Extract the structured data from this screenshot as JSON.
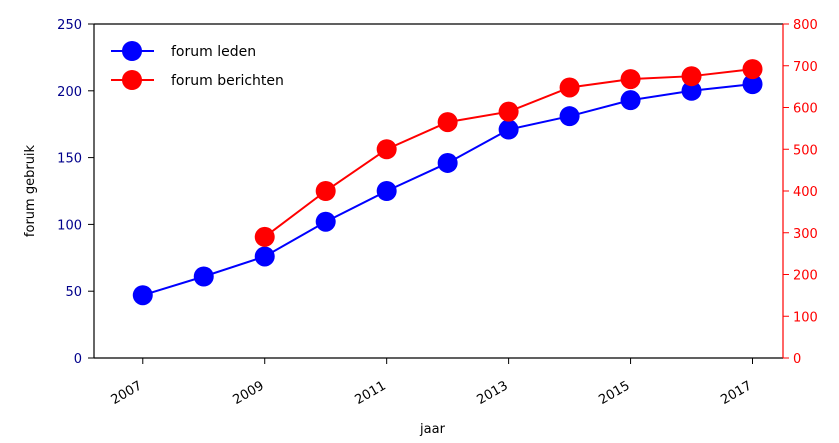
{
  "chart_data": {
    "type": "line",
    "title": "",
    "xlabel": "jaar",
    "ylabel_left": "forum gebruik",
    "ylabel_right": "",
    "x": [
      2007,
      2008,
      2009,
      2010,
      2011,
      2012,
      2013,
      2014,
      2015,
      2016,
      2017
    ],
    "x_tick_labels": [
      "2007",
      "2009",
      "2011",
      "2013",
      "2015",
      "2017"
    ],
    "x_tick_values": [
      2007,
      2009,
      2011,
      2013,
      2015,
      2017
    ],
    "ylim_left": [
      0,
      250
    ],
    "yticks_left": [
      "0",
      "50",
      "100",
      "150",
      "200",
      "250"
    ],
    "ylim_right": [
      0,
      800
    ],
    "yticks_right": [
      "0",
      "100",
      "200",
      "300",
      "400",
      "500",
      "600",
      "700",
      "800"
    ],
    "grid": false,
    "legend_position": "upper-left",
    "series": [
      {
        "name": "forum leden",
        "axis": "left",
        "color": "#0000ff",
        "x": [
          2007,
          2008,
          2009,
          2010,
          2011,
          2012,
          2013,
          2014,
          2015,
          2016,
          2017
        ],
        "values": [
          47,
          61,
          76,
          102,
          125,
          146,
          171,
          181,
          193,
          200,
          205
        ]
      },
      {
        "name": "forum berichten",
        "axis": "right",
        "color": "#ff0000",
        "x": [
          2009,
          2010,
          2011,
          2012,
          2013,
          2014,
          2015,
          2016,
          2017
        ],
        "values": [
          290,
          400,
          500,
          565,
          590,
          648,
          668,
          675,
          692
        ]
      }
    ],
    "left_axis_color": "#00008b",
    "right_axis_color": "#ff0000"
  }
}
